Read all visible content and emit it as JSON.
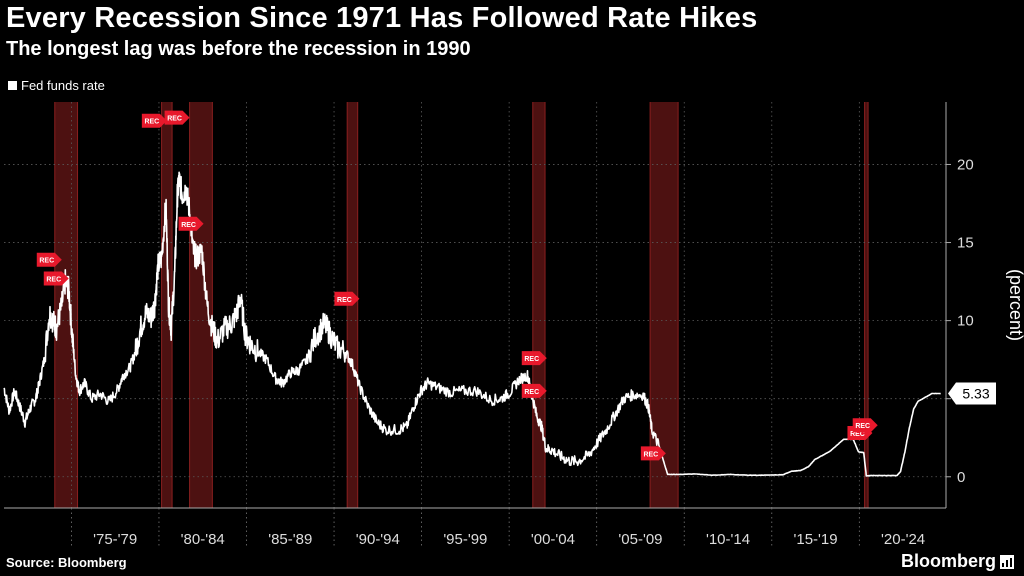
{
  "header": {
    "title": "Every Recession Since 1971 Has Followed Rate Hikes",
    "subtitle": "The longest lag was before the recession in 1990"
  },
  "footer": {
    "source": "Source: Bloomberg",
    "brand": "Bloomberg"
  },
  "colors": {
    "background": "#000000",
    "line": "#ffffff",
    "recession_band": "#5a1414",
    "marker": "#e8192c",
    "grid": "#5a5a5a"
  },
  "chart_data": {
    "type": "line",
    "title": "Every Recession Since 1971 Has Followed Rate Hikes",
    "subtitle": "The longest lag was before the recession in 1990",
    "ylabel": "(percent)",
    "xlabel": "",
    "ylim": [
      -2,
      24
    ],
    "xlim": [
      1971.0,
      2024.8
    ],
    "yticks": [
      0,
      5,
      10,
      15,
      20
    ],
    "legend": [
      "Fed funds rate"
    ],
    "legend_position": "top-left",
    "x_categories": [
      "'75-'79",
      "'80-'84",
      "'85-'89",
      "'90-'94",
      "'95-'99",
      "'00-'04",
      "'05-'09",
      "'10-'14",
      "'15-'19",
      "'20-'24"
    ],
    "last_value_label": "5.33",
    "recessions": [
      {
        "start": 1973.9,
        "end": 1975.2
      },
      {
        "start": 1980.0,
        "end": 1980.6
      },
      {
        "start": 1981.6,
        "end": 1982.9
      },
      {
        "start": 1990.6,
        "end": 1991.2
      },
      {
        "start": 2001.2,
        "end": 2001.9
      },
      {
        "start": 2007.9,
        "end": 2009.5
      },
      {
        "start": 2020.15,
        "end": 2020.35
      }
    ],
    "markers": [
      {
        "x": 1973.5,
        "y": 13.9,
        "label": "REC"
      },
      {
        "x": 1973.9,
        "y": 12.7,
        "label": "REC"
      },
      {
        "x": 1979.5,
        "y": 22.8,
        "label": "REC"
      },
      {
        "x": 1980.8,
        "y": 23.0,
        "label": "REC"
      },
      {
        "x": 1981.6,
        "y": 16.2,
        "label": "REC"
      },
      {
        "x": 1990.5,
        "y": 11.4,
        "label": "REC"
      },
      {
        "x": 2001.2,
        "y": 7.6,
        "label": "REC"
      },
      {
        "x": 2001.2,
        "y": 5.5,
        "label": "REC"
      },
      {
        "x": 2008.0,
        "y": 1.5,
        "label": "REC"
      },
      {
        "x": 2019.8,
        "y": 2.8,
        "label": "REC"
      },
      {
        "x": 2020.1,
        "y": 3.3,
        "label": "REC"
      }
    ],
    "series": [
      {
        "name": "Fed funds rate",
        "x": [
          1971.0,
          1971.3,
          1971.6,
          1971.9,
          1972.2,
          1972.5,
          1972.8,
          1973.0,
          1973.3,
          1973.6,
          1973.8,
          1974.0,
          1974.3,
          1974.5,
          1974.7,
          1974.9,
          1975.1,
          1975.3,
          1975.6,
          1976.0,
          1976.5,
          1977.0,
          1977.5,
          1977.8,
          1978.2,
          1978.5,
          1978.8,
          1979.1,
          1979.4,
          1979.6,
          1979.8,
          1980.0,
          1980.25,
          1980.4,
          1980.55,
          1980.75,
          1980.9,
          1981.0,
          1981.2,
          1981.4,
          1981.6,
          1981.8,
          1982.0,
          1982.3,
          1982.6,
          1982.9,
          1983.2,
          1983.6,
          1984.0,
          1984.3,
          1984.5,
          1984.8,
          1985.1,
          1985.5,
          1986.0,
          1986.5,
          1986.9,
          1987.4,
          1987.8,
          1988.3,
          1988.8,
          1989.3,
          1989.6,
          1990.0,
          1990.5,
          1990.9,
          1991.3,
          1991.8,
          1992.3,
          1992.8,
          1993.5,
          1994.0,
          1994.4,
          1994.8,
          1995.2,
          1995.8,
          1996.5,
          1997.2,
          1998.0,
          1998.8,
          1999.4,
          1999.9,
          2000.4,
          2000.9,
          2001.1,
          2001.4,
          2001.7,
          2001.95,
          2002.3,
          2002.8,
          2003.3,
          2003.8,
          2004.4,
          2004.9,
          2005.4,
          2005.9,
          2006.4,
          2006.9,
          2007.5,
          2007.8,
          2008.0,
          2008.4,
          2008.9,
          2009.5,
          2010.5,
          2011.5,
          2012.5,
          2013.5,
          2014.5,
          2015.5,
          2015.95,
          2016.5,
          2016.95,
          2017.3,
          2017.8,
          2018.2,
          2018.6,
          2018.95,
          2019.5,
          2019.8,
          2020.1,
          2020.25,
          2020.5,
          2021.0,
          2021.5,
          2022.0,
          2022.2,
          2022.45,
          2022.7,
          2022.95,
          2023.2,
          2023.6,
          2024.0,
          2024.5
        ],
        "values": [
          5.7,
          4.2,
          5.5,
          4.5,
          3.5,
          4.4,
          5.0,
          5.9,
          7.5,
          10.5,
          10.0,
          9.5,
          11.0,
          12.5,
          12.0,
          9.0,
          6.5,
          5.5,
          6.0,
          5.0,
          5.3,
          4.8,
          5.6,
          6.5,
          7.0,
          8.0,
          9.5,
          10.5,
          10.2,
          11.0,
          13.5,
          14.0,
          17.5,
          11.0,
          9.5,
          13.0,
          18.0,
          19.0,
          18.0,
          18.5,
          17.0,
          14.5,
          14.0,
          14.5,
          11.0,
          9.5,
          8.7,
          9.5,
          9.8,
          10.5,
          11.5,
          9.0,
          8.5,
          8.0,
          7.5,
          6.3,
          6.0,
          6.7,
          6.8,
          7.5,
          9.0,
          9.8,
          9.2,
          8.3,
          8.0,
          7.2,
          5.8,
          4.5,
          3.5,
          3.0,
          3.0,
          3.2,
          4.5,
          5.5,
          6.0,
          5.7,
          5.4,
          5.5,
          5.5,
          4.9,
          5.0,
          5.4,
          6.2,
          6.5,
          5.5,
          4.0,
          3.2,
          1.8,
          1.7,
          1.3,
          1.0,
          1.0,
          1.4,
          2.2,
          3.0,
          4.0,
          5.0,
          5.25,
          5.25,
          4.5,
          3.0,
          2.0,
          0.15,
          0.15,
          0.18,
          0.1,
          0.15,
          0.1,
          0.1,
          0.13,
          0.35,
          0.4,
          0.65,
          1.1,
          1.4,
          1.65,
          2.05,
          2.4,
          2.4,
          1.6,
          1.55,
          0.05,
          0.08,
          0.08,
          0.08,
          0.08,
          0.33,
          1.58,
          3.08,
          4.33,
          4.83,
          5.08,
          5.33,
          5.33
        ]
      }
    ]
  }
}
